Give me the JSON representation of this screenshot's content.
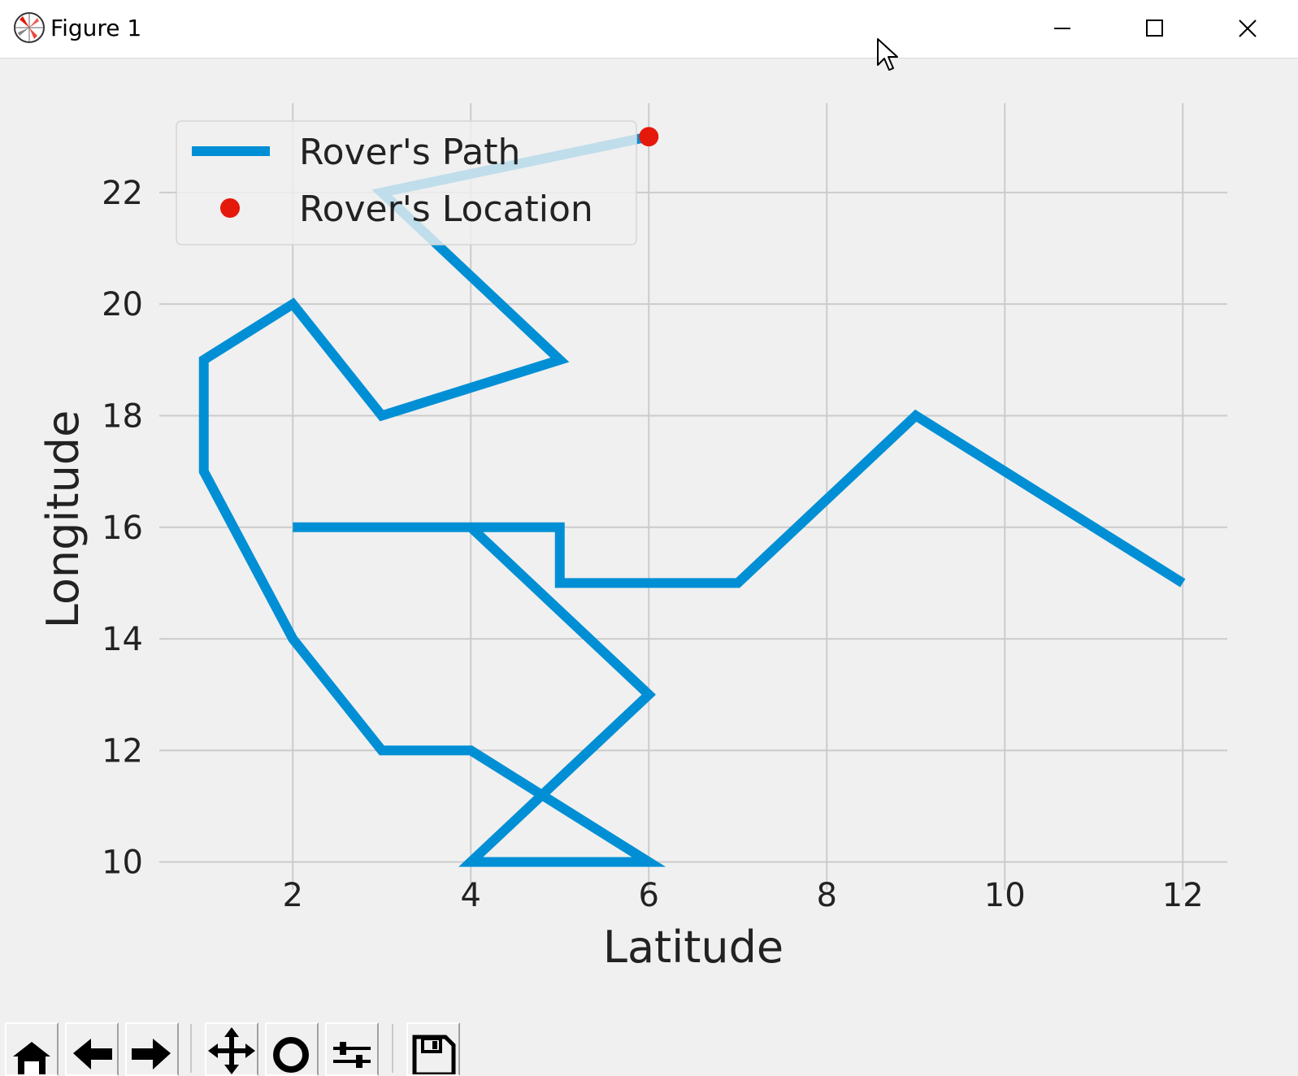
{
  "window": {
    "title": "Figure 1",
    "minimize_icon": "minimize-icon",
    "maximize_icon": "maximize-icon",
    "close_icon": "close-icon"
  },
  "toolbar": {
    "buttons": [
      "home-icon",
      "back-icon",
      "forward-icon",
      "pan-icon",
      "zoom-icon",
      "configure-subplots-icon",
      "save-icon"
    ]
  },
  "chart_data": {
    "type": "line",
    "title": "",
    "xlabel": "Latitude",
    "ylabel": "Longitude",
    "xlim": [
      0.5,
      12.5
    ],
    "ylim": [
      9.5,
      23.6
    ],
    "xticks": [
      2,
      4,
      6,
      8,
      10,
      12
    ],
    "yticks": [
      10,
      12,
      14,
      16,
      18,
      20,
      22
    ],
    "grid": true,
    "legend_position": "upper-left",
    "series": [
      {
        "name": "Rover's Path",
        "color": "#008fd5",
        "style": "line",
        "x": [
          12,
          9,
          7,
          5,
          5,
          2,
          4,
          6,
          4,
          6,
          4,
          3,
          2,
          1,
          1,
          2,
          3,
          5,
          3,
          6
        ],
        "y": [
          15,
          18,
          15,
          15,
          16,
          16,
          16,
          13,
          10,
          10,
          12,
          12,
          14,
          17,
          19,
          20,
          18,
          19,
          22,
          23
        ]
      },
      {
        "name": "Rover's Location",
        "color": "#e5190b",
        "style": "marker",
        "x": [
          6
        ],
        "y": [
          23
        ]
      }
    ]
  }
}
